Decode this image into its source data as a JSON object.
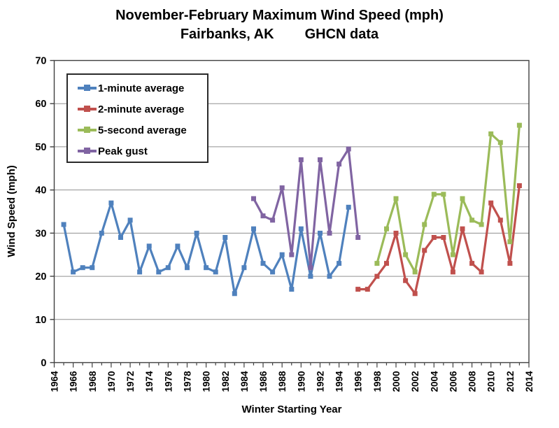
{
  "chart": {
    "title": "November-February Maximum Wind Speed (mph)",
    "subtitle_left": "Fairbanks, AK",
    "subtitle_right": "GHCN data",
    "x_axis_title": "Winter Starting Year",
    "y_axis_title": "Wind Speed (mph)"
  },
  "chart_data": {
    "type": "line",
    "title": "November-February Maximum Wind Speed (mph)",
    "subtitle": "Fairbanks, AK        GHCN data",
    "xlabel": "Winter Starting Year",
    "ylabel": "Wind Speed (mph)",
    "xlim": [
      1964,
      2014
    ],
    "ylim": [
      0,
      70
    ],
    "y_tick_step": 10,
    "y_ticks": [
      0,
      10,
      20,
      30,
      40,
      50,
      60,
      70
    ],
    "x_ticks_labeled": [
      1964,
      1966,
      1968,
      1970,
      1972,
      1974,
      1976,
      1978,
      1980,
      1982,
      1984,
      1986,
      1988,
      1990,
      1992,
      1994,
      1996,
      1998,
      2000,
      2002,
      2004,
      2006,
      2008,
      2010,
      2012,
      2014
    ],
    "x_minor_tick_step": 1,
    "grid": true,
    "legend_position": "upper-left-inside",
    "marker": "square",
    "series": [
      {
        "name": "1-minute average",
        "color": "#4F81BD",
        "points": [
          [
            1965,
            32
          ],
          [
            1966,
            21
          ],
          [
            1967,
            22
          ],
          [
            1968,
            22
          ],
          [
            1969,
            30
          ],
          [
            1970,
            37
          ],
          [
            1971,
            29
          ],
          [
            1972,
            33
          ],
          [
            1973,
            21
          ],
          [
            1974,
            27
          ],
          [
            1975,
            21
          ],
          [
            1976,
            22
          ],
          [
            1977,
            27
          ],
          [
            1978,
            22
          ],
          [
            1979,
            30
          ],
          [
            1980,
            22
          ],
          [
            1981,
            21
          ],
          [
            1982,
            29
          ],
          [
            1983,
            16
          ],
          [
            1984,
            22
          ],
          [
            1985,
            31
          ],
          [
            1986,
            23
          ],
          [
            1987,
            21
          ],
          [
            1988,
            25
          ],
          [
            1989,
            17
          ],
          [
            1990,
            31
          ],
          [
            1991,
            20
          ],
          [
            1992,
            30
          ],
          [
            1993,
            20
          ],
          [
            1994,
            23
          ],
          [
            1995,
            36
          ]
        ]
      },
      {
        "name": "2-minute average",
        "color": "#C0504D",
        "points": [
          [
            1996,
            17
          ],
          [
            1997,
            17
          ],
          [
            1998,
            20
          ],
          [
            1999,
            23
          ],
          [
            2000,
            30
          ],
          [
            2001,
            19
          ],
          [
            2002,
            16
          ],
          [
            2003,
            26
          ],
          [
            2004,
            29
          ],
          [
            2005,
            29
          ],
          [
            2006,
            21
          ],
          [
            2007,
            31
          ],
          [
            2008,
            23
          ],
          [
            2009,
            21
          ],
          [
            2010,
            37
          ],
          [
            2011,
            33
          ],
          [
            2012,
            23
          ],
          [
            2013,
            41
          ]
        ]
      },
      {
        "name": "5-second average",
        "color": "#9BBB59",
        "points": [
          [
            1998,
            23
          ],
          [
            1999,
            31
          ],
          [
            2000,
            38
          ],
          [
            2001,
            25
          ],
          [
            2002,
            21
          ],
          [
            2003,
            32
          ],
          [
            2004,
            39
          ],
          [
            2005,
            39
          ],
          [
            2006,
            25
          ],
          [
            2007,
            38
          ],
          [
            2008,
            33
          ],
          [
            2009,
            32
          ],
          [
            2010,
            53
          ],
          [
            2011,
            51
          ],
          [
            2012,
            28
          ],
          [
            2013,
            55
          ]
        ]
      },
      {
        "name": "Peak gust",
        "color": "#8064A2",
        "points": [
          [
            1985,
            38
          ],
          [
            1986,
            34
          ],
          [
            1987,
            33
          ],
          [
            1988,
            40.5
          ],
          [
            1989,
            25
          ],
          [
            1990,
            47
          ],
          [
            1991,
            22
          ],
          [
            1992,
            47
          ],
          [
            1993,
            30
          ],
          [
            1994,
            46
          ],
          [
            1995,
            49.5
          ],
          [
            1996,
            29
          ]
        ]
      }
    ],
    "colors": {
      "gridline": "#909090",
      "axis": "#404040",
      "background": "#FFFFFF"
    }
  }
}
